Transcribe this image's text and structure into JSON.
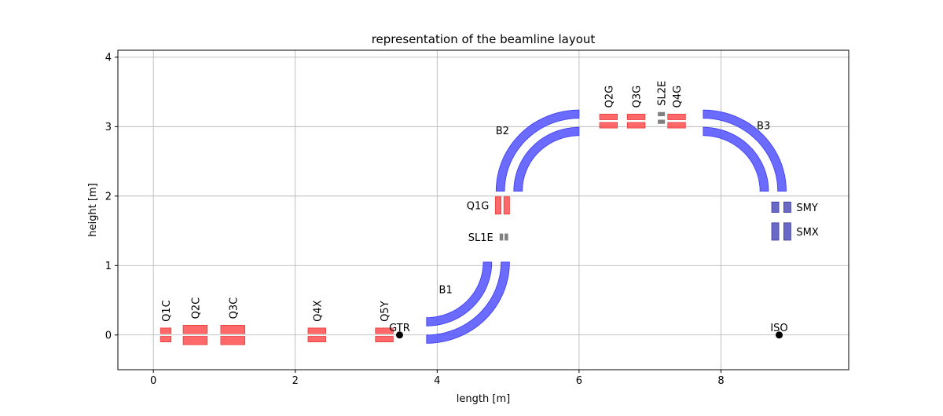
{
  "chart_data": {
    "type": "scatter",
    "title": "representation of the beamline layout",
    "xlabel": "length [m]",
    "ylabel": "height [m]",
    "xlim": [
      -0.5,
      9.8
    ],
    "ylim": [
      -0.5,
      4.1
    ],
    "xticks": [
      0,
      2,
      4,
      6,
      8
    ],
    "yticks": [
      0,
      1,
      2,
      3,
      4
    ],
    "grid": true,
    "colors": {
      "quadrupole": "#ff4f4f",
      "dipole": "#4a4aff",
      "slit": "#808080",
      "scanning_magnet": "#5a5ac0",
      "point": "#000000"
    },
    "points": [
      {
        "label": "GTR",
        "x": 3.47,
        "y": 0.0
      },
      {
        "label": "ISO",
        "x": 8.82,
        "y": 0.0
      }
    ],
    "quadrupoles": [
      {
        "label": "Q1C",
        "x": 0.1,
        "y": 0.0,
        "width": 0.15,
        "length": 0.08,
        "gap": 0.04,
        "orientation": "horizontal",
        "label_rotated": true
      },
      {
        "label": "Q2C",
        "x": 0.42,
        "y": 0.0,
        "width": 0.34,
        "length": 0.12,
        "gap": 0.04,
        "orientation": "horizontal",
        "label_rotated": true
      },
      {
        "label": "Q3C",
        "x": 0.95,
        "y": 0.0,
        "width": 0.34,
        "length": 0.12,
        "gap": 0.04,
        "orientation": "horizontal",
        "label_rotated": true
      },
      {
        "label": "Q4X",
        "x": 2.18,
        "y": 0.0,
        "width": 0.25,
        "length": 0.08,
        "gap": 0.04,
        "orientation": "horizontal",
        "label_rotated": true
      },
      {
        "label": "Q5Y",
        "x": 3.13,
        "y": 0.0,
        "width": 0.25,
        "length": 0.08,
        "gap": 0.04,
        "orientation": "horizontal",
        "label_rotated": true
      },
      {
        "label": "Q1G",
        "x": 4.92,
        "y": 1.74,
        "width": 0.25,
        "length": 0.08,
        "gap": 0.04,
        "orientation": "vertical",
        "label_rotated": false
      },
      {
        "label": "Q2G",
        "x": 6.29,
        "y": 3.08,
        "width": 0.25,
        "length": 0.08,
        "gap": 0.04,
        "orientation": "horizontal",
        "label_rotated": true
      },
      {
        "label": "Q3G",
        "x": 6.68,
        "y": 3.08,
        "width": 0.25,
        "length": 0.08,
        "gap": 0.04,
        "orientation": "horizontal",
        "label_rotated": true
      },
      {
        "label": "Q4G",
        "x": 7.25,
        "y": 3.08,
        "width": 0.25,
        "length": 0.08,
        "gap": 0.04,
        "orientation": "horizontal",
        "label_rotated": true
      }
    ],
    "slits": [
      {
        "label": "SL1E",
        "x": 4.94,
        "y": 1.41,
        "orientation": "vertical",
        "label_rotated": false
      },
      {
        "label": "SL2E",
        "x": 7.16,
        "y": 3.12,
        "orientation": "horizontal",
        "label_rotated": true
      }
    ],
    "scanning_magnets": [
      {
        "label": "SMY",
        "x": 8.85,
        "y": 1.84,
        "width": 0.1,
        "length": 0.15,
        "gap": 0.07
      },
      {
        "label": "SMX",
        "x": 8.85,
        "y": 1.49,
        "width": 0.1,
        "length": 0.25,
        "gap": 0.07
      }
    ],
    "dipoles": [
      {
        "label": "B1",
        "cx": 3.85,
        "cy": 1.05,
        "r_in": 0.92,
        "r_out": 1.05,
        "gap": 0.1,
        "thickness": 0.12,
        "theta_start": 270,
        "theta_end": 360,
        "label_x": 4.12,
        "label_y": 0.66
      },
      {
        "label": "B2",
        "cx": 6.0,
        "cy": 2.07,
        "r_in": 0.92,
        "r_out": 1.05,
        "gap": 0.1,
        "thickness": 0.12,
        "theta_start": 90,
        "theta_end": 180,
        "label_x": 4.92,
        "label_y": 2.95
      },
      {
        "label": "B3",
        "cx": 7.75,
        "cy": 2.07,
        "r_in": 0.92,
        "r_out": 1.05,
        "gap": 0.1,
        "thickness": 0.12,
        "theta_start": 0,
        "theta_end": 90,
        "label_x": 8.6,
        "label_y": 3.02
      }
    ]
  }
}
